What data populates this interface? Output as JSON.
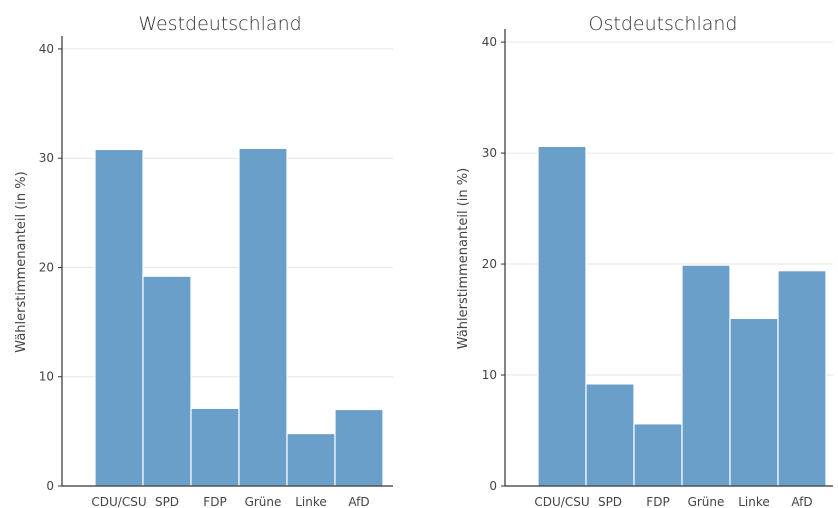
{
  "chart_data": [
    {
      "type": "bar",
      "title": "Westdeutschland",
      "xlabel": "",
      "ylabel": "Wählerstimmenanteil (in %)",
      "categories": [
        "CDU/CSU",
        "SPD",
        "FDP",
        "Grüne",
        "Linke",
        "AfD"
      ],
      "values": [
        30.8,
        19.2,
        7.1,
        30.9,
        4.8,
        7.0
      ],
      "ylim": [
        0,
        41
      ],
      "yticks": [
        0,
        10,
        20,
        30,
        40
      ],
      "grid": true,
      "bar_color": "#6a9fca"
    },
    {
      "type": "bar",
      "title": "Ostdeutschland",
      "xlabel": "",
      "ylabel": "Wählerstimmenanteil (in %)",
      "categories": [
        "CDU/CSU",
        "SPD",
        "FDP",
        "Grüne",
        "Linke",
        "AfD"
      ],
      "values": [
        30.6,
        9.2,
        5.6,
        19.9,
        15.1,
        19.4
      ],
      "ylim": [
        0,
        41
      ],
      "yticks": [
        0,
        10,
        20,
        30,
        40
      ],
      "grid": true,
      "bar_color": "#6a9fca"
    }
  ]
}
